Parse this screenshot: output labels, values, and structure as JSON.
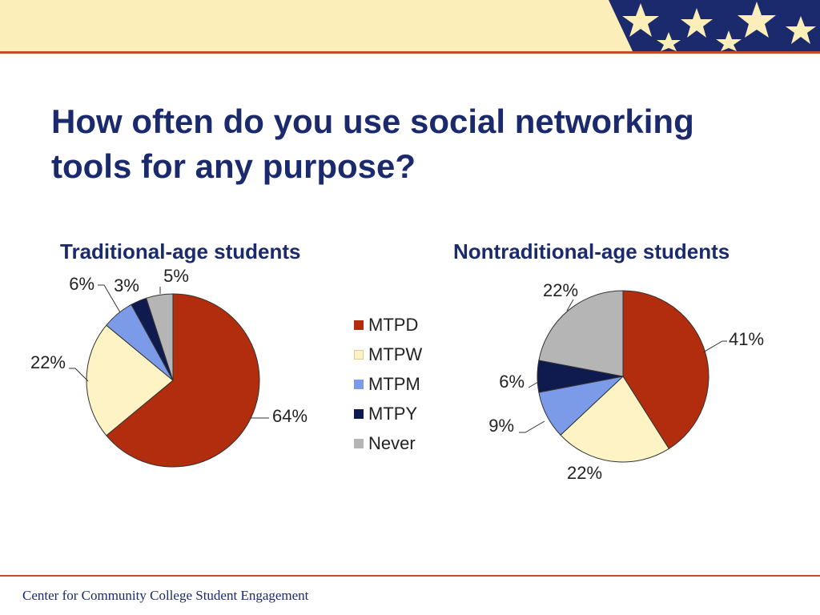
{
  "slide": {
    "title": "How often do you use social networking tools for any purpose?",
    "footer": "Center for Community College Student Engagement"
  },
  "colors": {
    "banner": "#fbeeb8",
    "accent_rule": "#c0502a",
    "title_text": "#1a2a6c",
    "star_navy": "#1a2a6c",
    "MTPD": "#b22d0e",
    "MTPW": "#fdf3c4",
    "MTPM": "#7b9be8",
    "MTPY": "#0f1a4f",
    "Never": "#b5b5b5"
  },
  "legend": {
    "items": [
      {
        "label": "MTPD",
        "color": "#b22d0e"
      },
      {
        "label": "MTPW",
        "color": "#fdf3c4"
      },
      {
        "label": "MTPM",
        "color": "#7b9be8"
      },
      {
        "label": "MTPY",
        "color": "#0f1a4f"
      },
      {
        "label": "Never",
        "color": "#b5b5b5"
      }
    ]
  },
  "chart_data": [
    {
      "type": "pie",
      "title": "Traditional-age students",
      "categories": [
        "MTPD",
        "MTPW",
        "MTPM",
        "MTPY",
        "Never"
      ],
      "values": [
        64,
        22,
        6,
        3,
        5
      ],
      "labels": [
        "64%",
        "22%",
        "6%",
        "3%",
        "5%"
      ],
      "legend_position": "right"
    },
    {
      "type": "pie",
      "title": "Nontraditional-age students",
      "categories": [
        "MTPD",
        "MTPW",
        "MTPM",
        "MTPY",
        "Never"
      ],
      "values": [
        41,
        22,
        9,
        6,
        22
      ],
      "labels": [
        "41%",
        "22%",
        "9%",
        "6%",
        "22%"
      ],
      "legend_position": "left"
    }
  ]
}
